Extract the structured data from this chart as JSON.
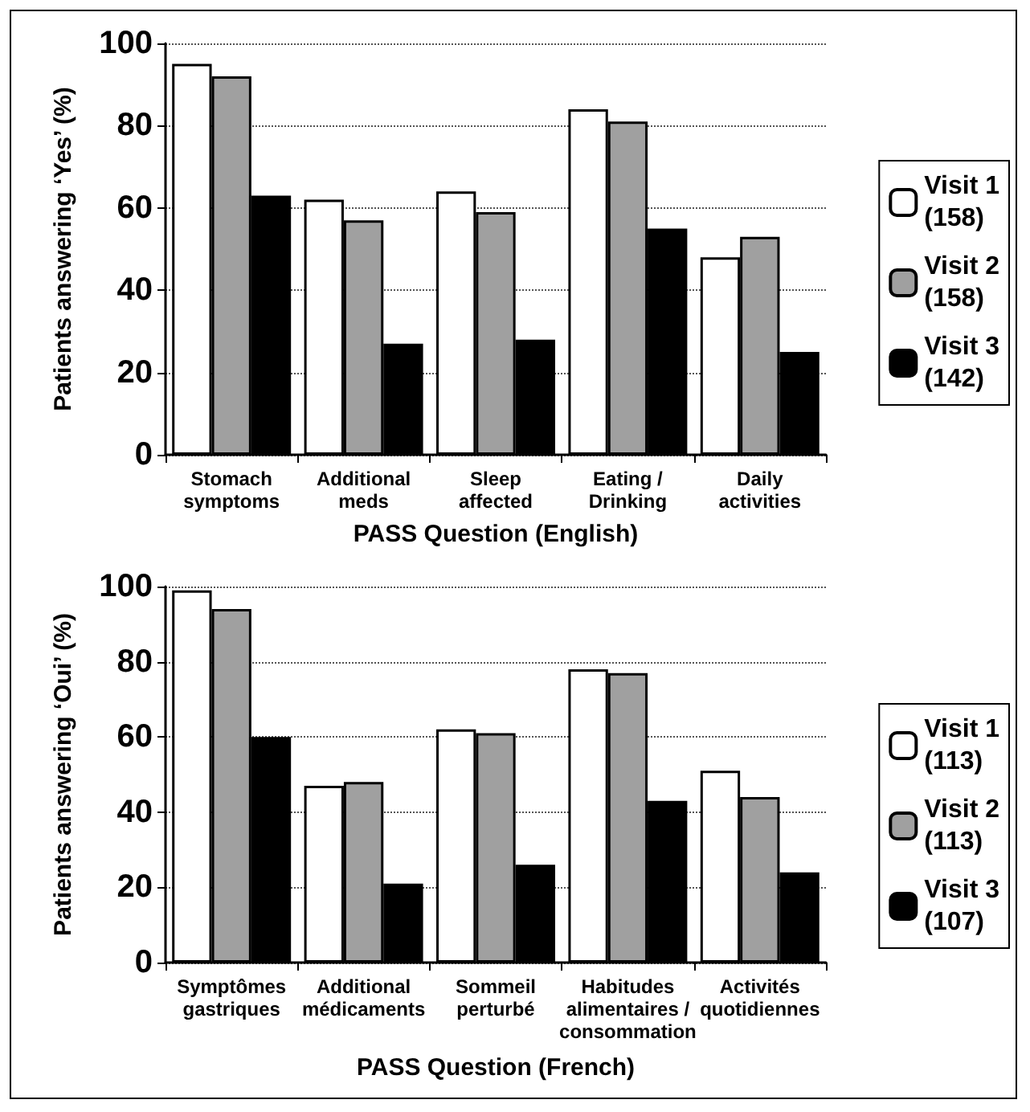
{
  "chart_data": [
    {
      "type": "bar",
      "xlabel": "PASS Question (English)",
      "ylabel": "Patients answering ‘Yes’ (%)",
      "categories": [
        "Stomach\nsymptoms",
        "Additional\nmeds",
        "Sleep\naffected",
        "Eating /\nDrinking",
        "Daily\nactivities"
      ],
      "ylim": [
        0,
        100
      ],
      "yticks": [
        0,
        20,
        40,
        60,
        80,
        100
      ],
      "grid": "y",
      "legend": "right",
      "series": [
        {
          "name": "Visit 1\n(158)",
          "color": "#ffffff",
          "values": [
            95,
            62,
            64,
            84,
            48
          ]
        },
        {
          "name": "Visit 2\n(158)",
          "color": "#a0a0a0",
          "values": [
            92,
            57,
            59,
            81,
            53
          ]
        },
        {
          "name": "Visit 3\n(142)",
          "color": "#000000",
          "values": [
            63,
            27,
            28,
            55,
            25
          ]
        }
      ]
    },
    {
      "type": "bar",
      "xlabel": "PASS Question (French)",
      "ylabel": "Patients answering ‘Oui’ (%)",
      "categories": [
        "Symptômes\ngastriques",
        "Additional\nmédicaments",
        "Sommeil\nperturbé",
        "Habitudes\nalimentaires /\nconsommation",
        "Activités\nquotidiennes"
      ],
      "ylim": [
        0,
        100
      ],
      "yticks": [
        0,
        20,
        40,
        60,
        80,
        100
      ],
      "grid": "y",
      "legend": "right",
      "series": [
        {
          "name": "Visit 1\n(113)",
          "color": "#ffffff",
          "values": [
            99,
            47,
            62,
            78,
            51
          ]
        },
        {
          "name": "Visit 2\n(113)",
          "color": "#a0a0a0",
          "values": [
            94,
            48,
            61,
            77,
            44
          ]
        },
        {
          "name": "Visit 3\n(107)",
          "color": "#000000",
          "values": [
            60,
            21,
            26,
            43,
            24
          ]
        }
      ]
    }
  ]
}
